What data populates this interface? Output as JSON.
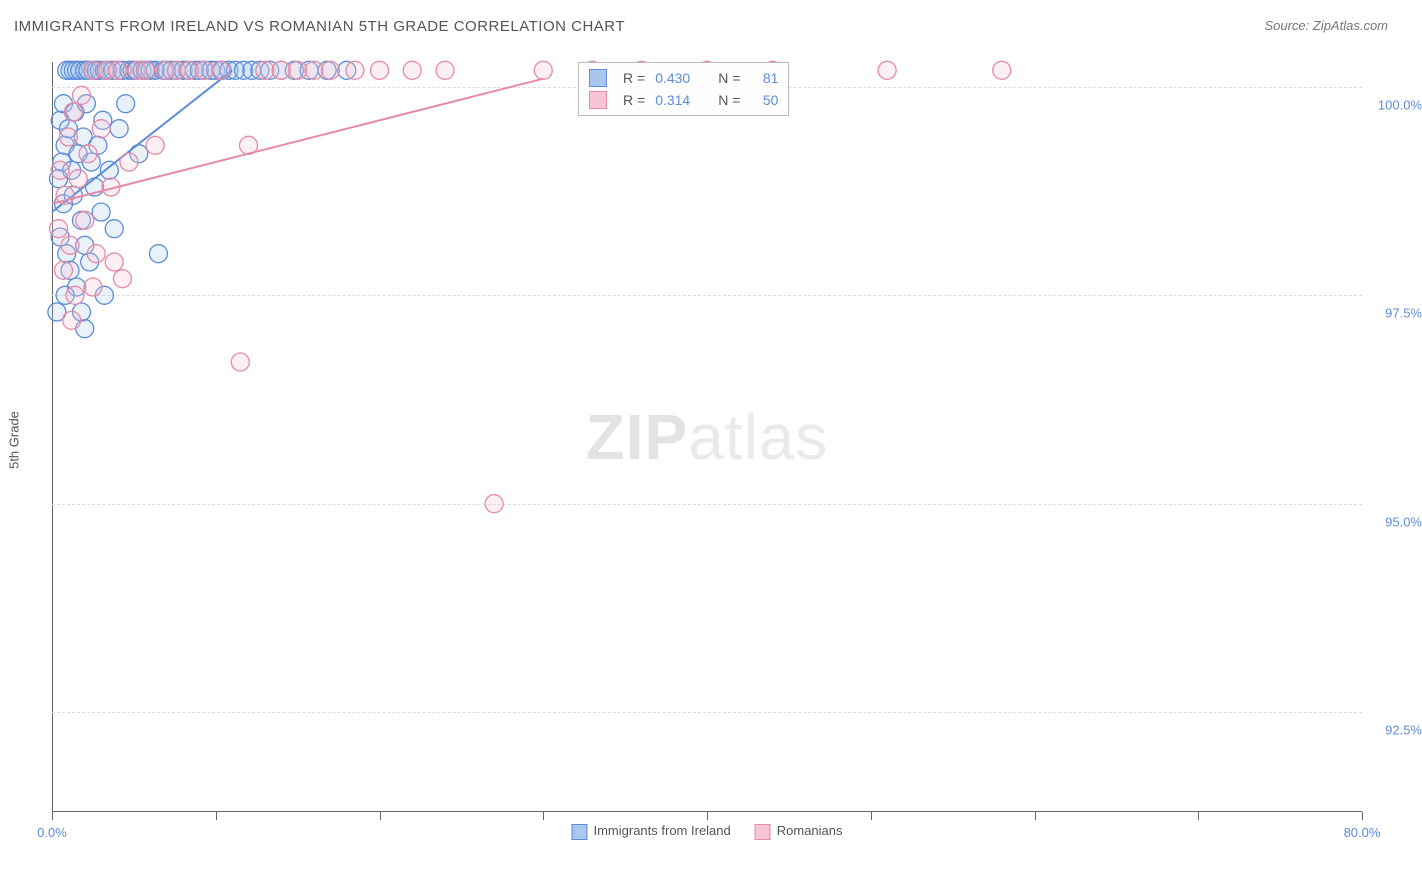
{
  "title": "IMMIGRANTS FROM IRELAND VS ROMANIAN 5TH GRADE CORRELATION CHART",
  "source": "Source: ZipAtlas.com",
  "ylabel": "5th Grade",
  "watermark_zip": "ZIP",
  "watermark_atlas": "atlas",
  "chart": {
    "type": "scatter",
    "xlim": [
      0,
      80
    ],
    "ylim": [
      91.3,
      100.3
    ],
    "background_color": "#ffffff",
    "grid_color": "#dddddd",
    "yticks": [
      {
        "val": 100.0,
        "label": "100.0%"
      },
      {
        "val": 97.5,
        "label": "97.5%"
      },
      {
        "val": 95.0,
        "label": "95.0%"
      },
      {
        "val": 92.5,
        "label": "92.5%"
      }
    ],
    "xticks_major": [
      0,
      10,
      20,
      30,
      40,
      50,
      60,
      70,
      80
    ],
    "xtick_labels": [
      {
        "val": 0,
        "label": "0.0%"
      },
      {
        "val": 80,
        "label": "80.0%"
      }
    ],
    "marker_radius": 9,
    "marker_stroke_width": 1.3,
    "marker_fill_opacity": 0.25,
    "trendline_width": 2
  },
  "series": [
    {
      "key": "ireland",
      "label": "Immigrants from Ireland",
      "color_stroke": "#5b8dd6",
      "color_fill": "#a9c6ec",
      "R": "0.430",
      "N": "81",
      "trendline": {
        "x1": 0,
        "y1": 98.5,
        "x2": 11,
        "y2": 100.2
      },
      "points": [
        [
          0.3,
          97.3
        ],
        [
          0.4,
          98.9
        ],
        [
          0.5,
          99.6
        ],
        [
          0.5,
          98.2
        ],
        [
          0.6,
          99.1
        ],
        [
          0.7,
          99.8
        ],
        [
          0.7,
          98.6
        ],
        [
          0.8,
          99.3
        ],
        [
          0.9,
          100.2
        ],
        [
          0.9,
          98.0
        ],
        [
          1.0,
          99.5
        ],
        [
          1.1,
          100.2
        ],
        [
          1.1,
          97.8
        ],
        [
          1.2,
          99.0
        ],
        [
          1.3,
          100.2
        ],
        [
          1.3,
          98.7
        ],
        [
          1.4,
          99.7
        ],
        [
          1.5,
          100.2
        ],
        [
          1.5,
          97.6
        ],
        [
          1.6,
          99.2
        ],
        [
          1.7,
          100.2
        ],
        [
          1.8,
          98.4
        ],
        [
          1.9,
          99.4
        ],
        [
          2.0,
          100.2
        ],
        [
          2.0,
          98.1
        ],
        [
          2.1,
          99.8
        ],
        [
          2.2,
          100.2
        ],
        [
          2.3,
          97.9
        ],
        [
          2.4,
          99.1
        ],
        [
          2.5,
          100.2
        ],
        [
          2.6,
          98.8
        ],
        [
          2.7,
          100.2
        ],
        [
          2.8,
          99.3
        ],
        [
          2.9,
          100.2
        ],
        [
          3.0,
          98.5
        ],
        [
          3.1,
          99.6
        ],
        [
          3.2,
          100.2
        ],
        [
          3.4,
          100.2
        ],
        [
          3.5,
          99.0
        ],
        [
          3.7,
          100.2
        ],
        [
          3.8,
          98.3
        ],
        [
          4.0,
          100.2
        ],
        [
          4.1,
          99.5
        ],
        [
          4.3,
          100.2
        ],
        [
          4.5,
          99.8
        ],
        [
          4.7,
          100.2
        ],
        [
          4.9,
          100.2
        ],
        [
          5.1,
          100.2
        ],
        [
          5.3,
          99.2
        ],
        [
          5.5,
          100.2
        ],
        [
          5.8,
          100.2
        ],
        [
          6.0,
          100.2
        ],
        [
          6.3,
          100.2
        ],
        [
          6.5,
          98.0
        ],
        [
          6.8,
          100.2
        ],
        [
          7.0,
          100.2
        ],
        [
          7.3,
          100.2
        ],
        [
          7.6,
          100.2
        ],
        [
          8.0,
          100.2
        ],
        [
          8.3,
          100.2
        ],
        [
          8.7,
          100.2
        ],
        [
          9.0,
          100.2
        ],
        [
          9.3,
          100.2
        ],
        [
          9.7,
          100.2
        ],
        [
          10.0,
          100.2
        ],
        [
          10.4,
          100.2
        ],
        [
          10.8,
          100.2
        ],
        [
          11.2,
          100.2
        ],
        [
          11.7,
          100.2
        ],
        [
          12.2,
          100.2
        ],
        [
          12.7,
          100.2
        ],
        [
          13.3,
          100.2
        ],
        [
          14.0,
          100.2
        ],
        [
          14.8,
          100.2
        ],
        [
          15.7,
          100.2
        ],
        [
          16.8,
          100.2
        ],
        [
          18.0,
          100.2
        ],
        [
          2.0,
          97.1
        ],
        [
          3.2,
          97.5
        ],
        [
          1.8,
          97.3
        ],
        [
          0.8,
          97.5
        ]
      ]
    },
    {
      "key": "romanian",
      "label": "Romanians",
      "color_stroke": "#e68aa5",
      "color_fill": "#f6c5d3",
      "R": "0.314",
      "N": "50",
      "trendline": {
        "x1": 0,
        "y1": 98.6,
        "x2": 30,
        "y2": 100.1
      },
      "points": [
        [
          0.4,
          98.3
        ],
        [
          0.5,
          99.0
        ],
        [
          0.7,
          97.8
        ],
        [
          0.8,
          98.7
        ],
        [
          1.0,
          99.4
        ],
        [
          1.1,
          98.1
        ],
        [
          1.3,
          99.7
        ],
        [
          1.4,
          97.5
        ],
        [
          1.6,
          98.9
        ],
        [
          1.8,
          99.9
        ],
        [
          2.0,
          98.4
        ],
        [
          2.2,
          99.2
        ],
        [
          2.5,
          100.2
        ],
        [
          2.7,
          98.0
        ],
        [
          3.0,
          99.5
        ],
        [
          3.3,
          100.2
        ],
        [
          3.6,
          98.8
        ],
        [
          4.0,
          100.2
        ],
        [
          4.3,
          97.7
        ],
        [
          4.7,
          99.1
        ],
        [
          5.2,
          100.2
        ],
        [
          5.7,
          100.2
        ],
        [
          6.3,
          99.3
        ],
        [
          6.9,
          100.2
        ],
        [
          7.6,
          100.2
        ],
        [
          8.4,
          100.2
        ],
        [
          9.3,
          100.2
        ],
        [
          10.3,
          100.2
        ],
        [
          11.5,
          96.7
        ],
        [
          12.0,
          99.3
        ],
        [
          13.0,
          100.2
        ],
        [
          14.0,
          100.2
        ],
        [
          15.0,
          100.2
        ],
        [
          16.0,
          100.2
        ],
        [
          17.0,
          100.2
        ],
        [
          18.5,
          100.2
        ],
        [
          20.0,
          100.2
        ],
        [
          22.0,
          100.2
        ],
        [
          24.0,
          100.2
        ],
        [
          27.0,
          95.0
        ],
        [
          30.0,
          100.2
        ],
        [
          33.0,
          100.2
        ],
        [
          36.0,
          100.2
        ],
        [
          40.0,
          100.2
        ],
        [
          44.0,
          100.2
        ],
        [
          51.0,
          100.2
        ],
        [
          58.0,
          100.2
        ],
        [
          1.2,
          97.2
        ],
        [
          2.5,
          97.6
        ],
        [
          3.8,
          97.9
        ]
      ]
    }
  ],
  "legend_box": {
    "R_label": "R =",
    "N_label": "N ="
  },
  "bottom_legend": [
    {
      "series": 0
    },
    {
      "series": 1
    }
  ]
}
